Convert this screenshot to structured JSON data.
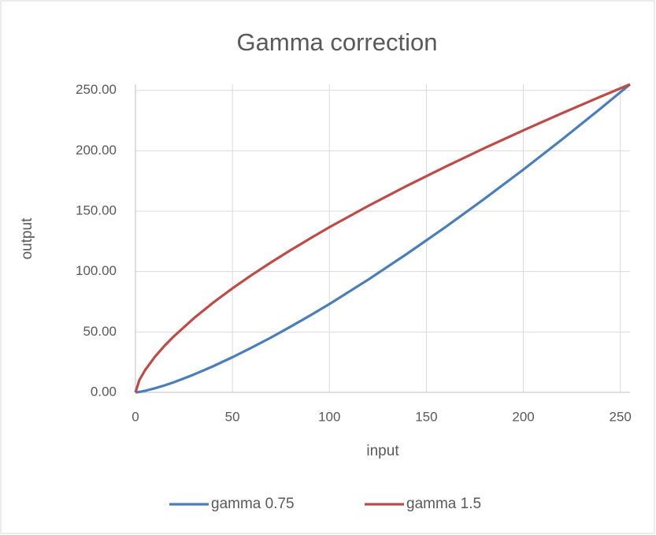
{
  "chart_data": {
    "type": "line",
    "title": "Gamma correction",
    "x_label": "input",
    "y_label": "output",
    "x": [
      0,
      2,
      5,
      10,
      15,
      20,
      30,
      40,
      50,
      60,
      70,
      80,
      90,
      100,
      120,
      140,
      160,
      180,
      200,
      220,
      240,
      255
    ],
    "series": [
      {
        "name": "gamma 0.75",
        "color": "#4a7ebb",
        "values": [
          0,
          0.4,
          1.3,
          3.4,
          5.8,
          8.5,
          14.7,
          21.6,
          29.1,
          37.1,
          45.5,
          54.4,
          63.6,
          73.1,
          93.3,
          114.7,
          137.0,
          160.3,
          184.4,
          209.4,
          235.2,
          255
        ]
      },
      {
        "name": "gamma 1.5",
        "color": "#be4b48",
        "values": [
          0,
          10.1,
          18.5,
          29.4,
          38.6,
          46.7,
          61.2,
          74.2,
          86.1,
          97.2,
          107.7,
          117.7,
          127.3,
          136.7,
          154.3,
          171.0,
          186.9,
          202.2,
          216.9,
          231.1,
          244.9,
          255
        ]
      }
    ],
    "xlim": [
      0,
      255
    ],
    "xticks": [
      0,
      50,
      100,
      150,
      200,
      250
    ],
    "ylim": [
      0,
      255
    ],
    "yticks": [
      {
        "value": 0,
        "label": "0.00"
      },
      {
        "value": 50,
        "label": "50.00"
      },
      {
        "value": 100,
        "label": "100.00"
      },
      {
        "value": 150,
        "label": "150.00"
      },
      {
        "value": 200,
        "label": "200.00"
      },
      {
        "value": 250,
        "label": "250.00"
      }
    ],
    "grid": true,
    "legend": "bottom"
  }
}
